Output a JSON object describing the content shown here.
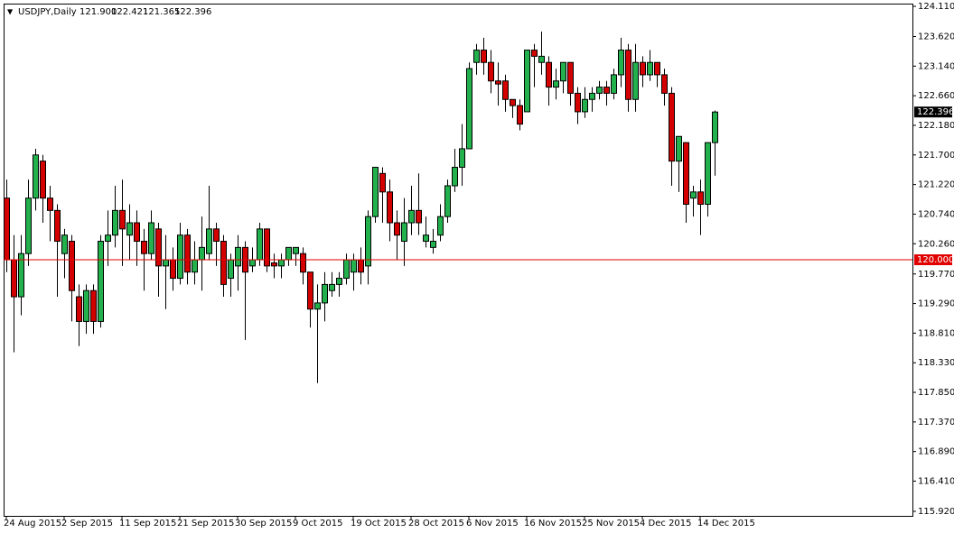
{
  "chart_data": {
    "type": "candlestick",
    "header": {
      "symbol": "USDJPY,Daily",
      "open": "121.900",
      "high": "122.421",
      "low": "121.365",
      "close": "122.396"
    },
    "categories": [
      "24 Aug 2015",
      null,
      null,
      null,
      null,
      null,
      null,
      null,
      "2 Sep 2015",
      null,
      null,
      null,
      null,
      null,
      null,
      null,
      "11 Sep 2015",
      null,
      null,
      null,
      null,
      null,
      null,
      null,
      "21 Sep 2015",
      null,
      null,
      null,
      null,
      null,
      null,
      null,
      "30 Sep 2015",
      null,
      null,
      null,
      null,
      null,
      null,
      null,
      "9 Oct 2015",
      null,
      null,
      null,
      null,
      null,
      null,
      null,
      "19 Oct 2015",
      null,
      null,
      null,
      null,
      null,
      null,
      null,
      "28 Oct 2015",
      null,
      null,
      null,
      null,
      null,
      null,
      null,
      "6 Nov 2015",
      null,
      null,
      null,
      null,
      null,
      null,
      null,
      "16 Nov 2015",
      null,
      null,
      null,
      null,
      null,
      null,
      null,
      "25 Nov 2015",
      null,
      null,
      null,
      null,
      null,
      null,
      null,
      "4 Dec 2015",
      null,
      null,
      null,
      null,
      null,
      null,
      null,
      "14 Dec 2015",
      null,
      null
    ],
    "open": [
      121.0,
      120.0,
      119.4,
      120.1,
      121.0,
      121.6,
      121.0,
      120.8,
      120.1,
      120.3,
      119.4,
      119.0,
      119.5,
      119.0,
      120.3,
      120.4,
      120.8,
      120.4,
      120.6,
      120.3,
      120.1,
      120.5,
      119.9,
      120.0,
      119.7,
      120.4,
      119.8,
      120.0,
      120.1,
      120.5,
      120.3,
      119.7,
      119.9,
      120.2,
      119.9,
      120.0,
      120.5,
      119.95,
      119.9,
      120.0,
      120.1,
      120.1,
      119.8,
      119.2,
      119.3,
      119.5,
      119.6,
      119.7,
      119.8,
      120.0,
      119.9,
      120.7,
      121.4,
      121.1,
      120.6,
      120.3,
      120.6,
      120.8,
      120.3,
      120.2,
      120.4,
      120.7,
      121.2,
      121.5,
      121.8,
      123.2,
      123.4,
      123.2,
      122.9,
      122.9,
      122.6,
      122.5,
      122.4,
      123.4,
      123.2,
      123.2,
      122.8,
      122.9,
      123.2,
      122.7,
      122.4,
      122.6,
      122.7,
      122.8,
      122.7,
      123.0,
      123.4,
      122.6,
      123.2,
      123.0,
      123.2,
      123.0,
      122.7,
      121.6,
      121.9,
      121.0,
      121.1,
      120.9,
      121.9
    ],
    "high": [
      121.3,
      120.4,
      120.4,
      121.3,
      121.8,
      121.7,
      121.2,
      120.9,
      120.5,
      120.4,
      119.6,
      119.6,
      119.6,
      120.4,
      120.8,
      121.2,
      121.3,
      120.9,
      120.8,
      120.5,
      120.8,
      120.6,
      120.4,
      120.2,
      120.6,
      120.5,
      120.3,
      120.7,
      121.2,
      120.6,
      120.4,
      120.1,
      120.4,
      120.3,
      120.2,
      120.6,
      120.5,
      120.1,
      120.1,
      120.2,
      120.2,
      120.2,
      119.8,
      119.6,
      119.8,
      119.8,
      119.8,
      120.1,
      120.1,
      120.2,
      120.8,
      121.5,
      121.5,
      121.3,
      120.8,
      121.0,
      121.2,
      121.4,
      120.7,
      120.5,
      120.9,
      121.3,
      121.8,
      122.2,
      123.2,
      123.5,
      123.6,
      123.4,
      123.2,
      123.0,
      122.6,
      122.6,
      123.4,
      123.5,
      123.7,
      123.3,
      123.1,
      123.2,
      123.2,
      122.8,
      122.8,
      122.8,
      122.9,
      122.9,
      123.1,
      123.6,
      123.5,
      123.5,
      123.3,
      123.4,
      123.2,
      123.1,
      122.8,
      122.0,
      121.9,
      121.2,
      121.3,
      121.9,
      122.421
    ],
    "low": [
      119.8,
      118.5,
      119.1,
      119.9,
      120.8,
      120.6,
      120.3,
      119.4,
      119.7,
      119.0,
      118.6,
      118.8,
      118.8,
      118.9,
      119.9,
      120.2,
      119.9,
      120.0,
      119.9,
      119.5,
      120.0,
      119.4,
      119.2,
      119.5,
      119.6,
      119.6,
      119.6,
      119.5,
      120.0,
      119.9,
      119.4,
      119.4,
      119.5,
      118.7,
      119.8,
      119.9,
      119.8,
      119.7,
      119.7,
      119.9,
      119.9,
      119.6,
      118.9,
      118.0,
      119.0,
      119.4,
      119.4,
      119.6,
      119.5,
      119.6,
      119.6,
      120.6,
      120.6,
      120.3,
      120.0,
      119.9,
      120.4,
      120.4,
      120.2,
      120.1,
      120.3,
      120.6,
      121.1,
      121.2,
      121.8,
      123.0,
      123.0,
      122.7,
      122.5,
      122.4,
      122.3,
      122.1,
      122.4,
      122.8,
      123.0,
      122.5,
      122.6,
      122.7,
      122.5,
      122.2,
      122.3,
      122.4,
      122.6,
      122.5,
      122.6,
      122.8,
      122.4,
      122.4,
      122.8,
      122.9,
      122.8,
      122.5,
      121.2,
      121.1,
      120.6,
      120.7,
      120.4,
      120.7,
      121.365
    ],
    "close": [
      120.0,
      119.4,
      120.1,
      121.0,
      121.7,
      121.0,
      120.8,
      120.3,
      120.4,
      119.5,
      119.0,
      119.5,
      119.0,
      120.3,
      120.4,
      120.8,
      120.5,
      120.6,
      120.3,
      120.1,
      120.6,
      119.9,
      120.0,
      119.7,
      120.4,
      119.8,
      120.0,
      120.2,
      120.5,
      120.3,
      119.6,
      120.0,
      120.2,
      119.8,
      120.0,
      120.5,
      119.9,
      119.9,
      120.0,
      120.2,
      120.2,
      119.8,
      119.2,
      119.3,
      119.6,
      119.6,
      119.7,
      120.0,
      120.0,
      119.8,
      120.7,
      121.5,
      121.1,
      120.6,
      120.4,
      120.6,
      120.8,
      120.6,
      120.4,
      120.3,
      120.7,
      121.2,
      121.5,
      121.8,
      123.1,
      123.4,
      123.2,
      122.9,
      122.85,
      122.6,
      122.5,
      122.2,
      123.4,
      123.3,
      123.3,
      122.8,
      122.9,
      123.2,
      122.7,
      122.4,
      122.6,
      122.7,
      122.8,
      122.7,
      123.0,
      123.4,
      122.6,
      123.2,
      123.0,
      123.2,
      123.0,
      122.7,
      121.6,
      122.0,
      120.9,
      121.1,
      120.9,
      121.9,
      122.396
    ],
    "up_color": "#22b14c",
    "down_color": "#d40000",
    "outline_color": "#000000",
    "ylim": [
      115.847,
      124.154
    ],
    "yticks": [
      {
        "value": 124.11,
        "label": "124.110"
      },
      {
        "value": 123.62,
        "label": "123.620"
      },
      {
        "value": 123.14,
        "label": "123.140"
      },
      {
        "value": 122.66,
        "label": "122.660"
      },
      {
        "value": 122.18,
        "label": "122.180"
      },
      {
        "value": 121.7,
        "label": "121.700"
      },
      {
        "value": 121.22,
        "label": "121.220"
      },
      {
        "value": 120.74,
        "label": "120.740"
      },
      {
        "value": 120.26,
        "label": "120.260"
      },
      {
        "value": 119.77,
        "label": "119.770"
      },
      {
        "value": 119.29,
        "label": "119.290"
      },
      {
        "value": 118.81,
        "label": "118.810"
      },
      {
        "value": 118.33,
        "label": "118.330"
      },
      {
        "value": 117.85,
        "label": "117.850"
      },
      {
        "value": 117.37,
        "label": "117.370"
      },
      {
        "value": 116.89,
        "label": "116.890"
      },
      {
        "value": 116.41,
        "label": "116.410"
      },
      {
        "value": 115.92,
        "label": "115.920"
      }
    ],
    "current_price": {
      "value": 122.396,
      "label": "122.396"
    },
    "level_line": {
      "value": 120.0,
      "label": "120.000",
      "color": "#e00000"
    },
    "grid": false
  }
}
